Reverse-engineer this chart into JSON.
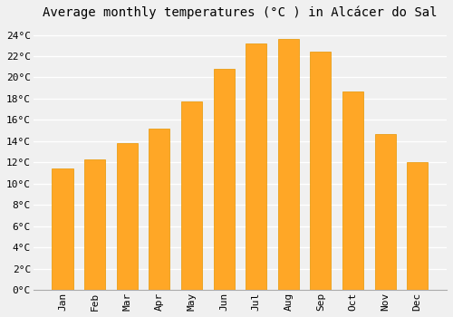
{
  "title": "Average monthly temperatures (°C ) in Alcácer do Sal",
  "months": [
    "Jan",
    "Feb",
    "Mar",
    "Apr",
    "May",
    "Jun",
    "Jul",
    "Aug",
    "Sep",
    "Oct",
    "Nov",
    "Dec"
  ],
  "values": [
    11.4,
    12.3,
    13.8,
    15.2,
    17.7,
    20.8,
    23.2,
    23.6,
    22.4,
    18.7,
    14.7,
    12.0
  ],
  "bar_color": "#FFA726",
  "bar_edge_color": "#E69500",
  "background_color": "#f0f0f0",
  "grid_color": "#ffffff",
  "ylim": [
    0,
    25
  ],
  "ytick_step": 2,
  "title_fontsize": 10,
  "tick_fontsize": 8,
  "font_family": "monospace"
}
